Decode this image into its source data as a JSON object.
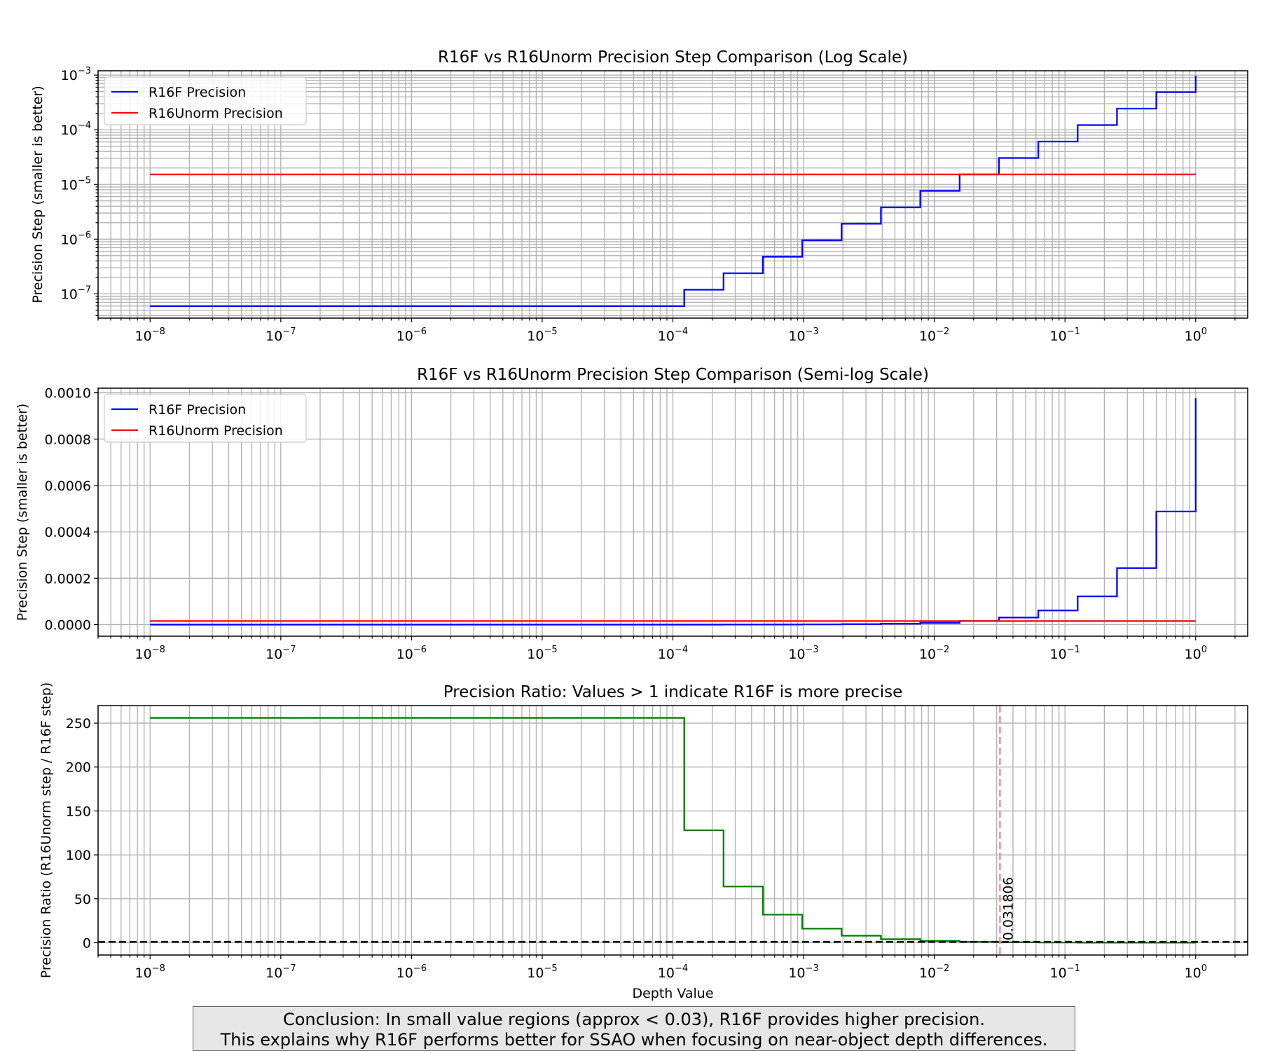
{
  "colors": {
    "r16f": "#0000ff",
    "r16unorm": "#ff0000",
    "ratio": "#008000",
    "crossover": "#ff8080",
    "reference": "#000000",
    "grid": "#b0b0b0"
  },
  "chart_data": [
    {
      "type": "line",
      "title": "R16F vs R16Unorm Precision Step Comparison (Log Scale)",
      "xlabel": "",
      "ylabel": "Precision Step (smaller is better)",
      "xscale": "log",
      "yscale": "log",
      "xlim": [
        4e-09,
        2.5
      ],
      "ylim": [
        3.6e-08,
        0.0012
      ],
      "x_ticks": [
        "10^-8",
        "10^-7",
        "10^-6",
        "10^-5",
        "10^-4",
        "10^-3",
        "10^-2",
        "10^-1",
        "10^0"
      ],
      "y_ticks": [
        "10^-7",
        "10^-6",
        "10^-5",
        "10^-4",
        "10^-3"
      ],
      "grid": "major and minor",
      "legend": "upper-left",
      "series": [
        {
          "name": "R16F Precision",
          "steps": [
            [
              1e-08,
              5.96e-08
            ],
            [
              0.0001221,
              1.19e-07
            ],
            [
              0.0002441,
              2.38e-07
            ],
            [
              0.0004883,
              4.77e-07
            ],
            [
              0.0009766,
              9.54e-07
            ],
            [
              0.001953,
              1.91e-06
            ],
            [
              0.003906,
              3.81e-06
            ],
            [
              0.007813,
              7.63e-06
            ],
            [
              0.01563,
              1.526e-05
            ],
            [
              0.03125,
              3.05e-05
            ],
            [
              0.0625,
              6.1e-05
            ],
            [
              0.125,
              0.000122
            ],
            [
              0.25,
              0.000244
            ],
            [
              0.5,
              0.000488
            ],
            [
              1.0,
              0.000977
            ]
          ]
        },
        {
          "name": "R16Unorm Precision",
          "points": [
            [
              1e-08,
              1.526e-05
            ],
            [
              1.0,
              1.526e-05
            ]
          ]
        }
      ]
    },
    {
      "type": "line",
      "title": "R16F vs R16Unorm Precision Step Comparison (Semi-log Scale)",
      "xlabel": "",
      "ylabel": "Precision Step (smaller is better)",
      "xscale": "log",
      "yscale": "linear",
      "xlim": [
        4e-09,
        2.5
      ],
      "ylim": [
        -5e-05,
        0.00102
      ],
      "x_ticks": [
        "10^-8",
        "10^-7",
        "10^-6",
        "10^-5",
        "10^-4",
        "10^-3",
        "10^-2",
        "10^-1",
        "10^0"
      ],
      "y_ticks": [
        "0.0000",
        "0.0002",
        "0.0004",
        "0.0006",
        "0.0008",
        "0.0010"
      ],
      "grid": "major and minor",
      "legend": "upper-left",
      "series": [
        {
          "name": "R16F Precision",
          "steps": [
            [
              1e-08,
              5.96e-08
            ],
            [
              0.0001221,
              1.19e-07
            ],
            [
              0.0002441,
              2.38e-07
            ],
            [
              0.0004883,
              4.77e-07
            ],
            [
              0.0009766,
              9.54e-07
            ],
            [
              0.001953,
              1.91e-06
            ],
            [
              0.003906,
              3.81e-06
            ],
            [
              0.007813,
              7.63e-06
            ],
            [
              0.01563,
              1.526e-05
            ],
            [
              0.03125,
              3.05e-05
            ],
            [
              0.0625,
              6.1e-05
            ],
            [
              0.125,
              0.000122
            ],
            [
              0.25,
              0.000244
            ],
            [
              0.5,
              0.000488
            ],
            [
              1.0,
              0.000977
            ]
          ]
        },
        {
          "name": "R16Unorm Precision",
          "points": [
            [
              1e-08,
              1.526e-05
            ],
            [
              1.0,
              1.526e-05
            ]
          ]
        }
      ]
    },
    {
      "type": "line",
      "title": "Precision Ratio: Values > 1 indicate R16F is more precise",
      "xlabel": "Depth Value",
      "ylabel": "Precision Ratio (R16Unorm step / R16F step)",
      "xscale": "log",
      "yscale": "linear",
      "xlim": [
        4e-09,
        2.5
      ],
      "ylim": [
        -14,
        270
      ],
      "x_ticks": [
        "10^-8",
        "10^-7",
        "10^-6",
        "10^-5",
        "10^-4",
        "10^-3",
        "10^-2",
        "10^-1",
        "10^0"
      ],
      "y_ticks": [
        "0",
        "50",
        "100",
        "150",
        "200",
        "250"
      ],
      "grid": "major and minor",
      "series": [
        {
          "steps": [
            [
              1e-08,
              256
            ],
            [
              0.0001221,
              128
            ],
            [
              0.0002441,
              64
            ],
            [
              0.0004883,
              32
            ],
            [
              0.0009766,
              16
            ],
            [
              0.001953,
              8
            ],
            [
              0.003906,
              4
            ],
            [
              0.007813,
              2
            ],
            [
              0.01563,
              1
            ],
            [
              0.03125,
              0.5
            ],
            [
              0.0625,
              0.25
            ],
            [
              0.125,
              0.125
            ],
            [
              0.25,
              0.0625
            ],
            [
              0.5,
              0.03125
            ],
            [
              1.0,
              0.0156
            ]
          ]
        }
      ],
      "reference_line": {
        "y": 1,
        "style": "dashed"
      },
      "crossover_line": {
        "x": 0.031806,
        "style": "dashed"
      },
      "annotation": "0.031806"
    }
  ],
  "conclusion": {
    "line1": "Conclusion: In small value regions (approx < 0.03), R16F provides higher precision.",
    "line2": "This explains why R16F performs better for SSAO when focusing on near-object depth differences."
  }
}
